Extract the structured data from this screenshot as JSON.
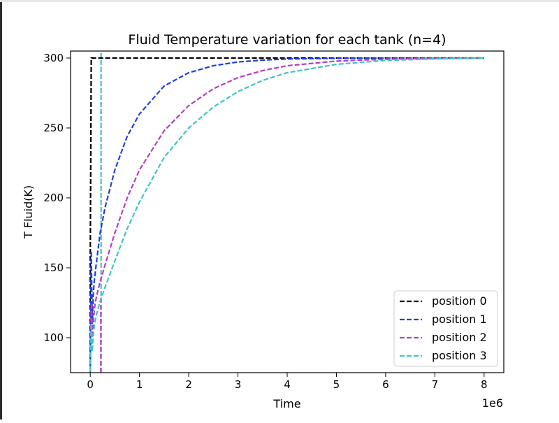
{
  "chart_data": {
    "type": "line",
    "title": "Fluid Temperature variation for each tank (n=4)",
    "xlabel": "Time",
    "ylabel": "T Fluid(K)",
    "x_offset_label": "1e6",
    "xlim": [
      -0.4,
      8.4
    ],
    "ylim": [
      75,
      305
    ],
    "xticks": [
      0,
      1,
      2,
      3,
      4,
      5,
      6,
      7,
      8
    ],
    "yticks": [
      100,
      150,
      200,
      250,
      300
    ],
    "grid": false,
    "legend_position": "lower right",
    "series": [
      {
        "name": "position 0",
        "color": "#000000",
        "style": "dashed",
        "x": [
          0,
          0.0,
          0.02,
          0.05,
          8
        ],
        "y": [
          80,
          160,
          300,
          300,
          300
        ]
      },
      {
        "name": "position 1",
        "color": "#1f3fe0",
        "style": "dashed",
        "x": [
          0.0,
          0.02,
          0.04,
          0.06,
          0.08,
          0.12,
          0.2,
          0.3,
          0.5,
          0.75,
          1.0,
          1.5,
          2.0,
          2.5,
          3.0,
          3.5,
          4.0,
          5.0,
          6.0,
          7.0,
          8.0
        ],
        "y": [
          78,
          162,
          110,
          130,
          140,
          152,
          175,
          193,
          220,
          244,
          260,
          280,
          289.5,
          294.5,
          297.2,
          298.5,
          299.3,
          299.8,
          300,
          300,
          300
        ]
      },
      {
        "name": "position 2",
        "color": "#b43ec2",
        "style": "dashed",
        "x": [
          0.0,
          0.02,
          0.04,
          0.07,
          0.1,
          0.15,
          0.2,
          0.3,
          0.5,
          0.75,
          1.0,
          1.5,
          2.0,
          2.5,
          3.0,
          3.5,
          4.0,
          5.0,
          6.0,
          7.0,
          8.0
        ],
        "y": [
          76,
          125,
          100,
          115,
          125,
          133,
          140,
          152,
          175,
          200,
          220,
          248,
          266,
          278,
          286,
          291,
          294.5,
          297.8,
          299.2,
          299.7,
          300
        ]
      },
      {
        "name": "position 3",
        "color": "#3ec5c5",
        "style": "dashed",
        "x": [
          0.0,
          0.02,
          0.04,
          0.07,
          0.1,
          0.15,
          0.2,
          0.3,
          0.5,
          0.75,
          1.0,
          1.5,
          2.0,
          2.5,
          3.0,
          3.5,
          4.0,
          5.0,
          6.0,
          7.0,
          8.0
        ],
        "y": [
          76,
          110,
          90,
          105,
          112,
          120,
          126,
          136,
          155,
          178,
          197,
          229,
          250,
          265,
          276,
          284,
          289.5,
          295.5,
          298.3,
          299.4,
          299.9
        ]
      }
    ],
    "annotations": [
      {
        "kind": "vertical_dashed_line",
        "color": "#3ec5c5",
        "x": 0.22,
        "y": [
          75,
          305
        ]
      },
      {
        "kind": "vertical_dashed_line",
        "color": "#b43ec2",
        "x": 0.215,
        "y": [
          75,
          130
        ]
      },
      {
        "kind": "vertical_dashed_line",
        "color": "#b43ec2",
        "x": 0.0,
        "y": [
          75,
          125
        ]
      }
    ]
  }
}
